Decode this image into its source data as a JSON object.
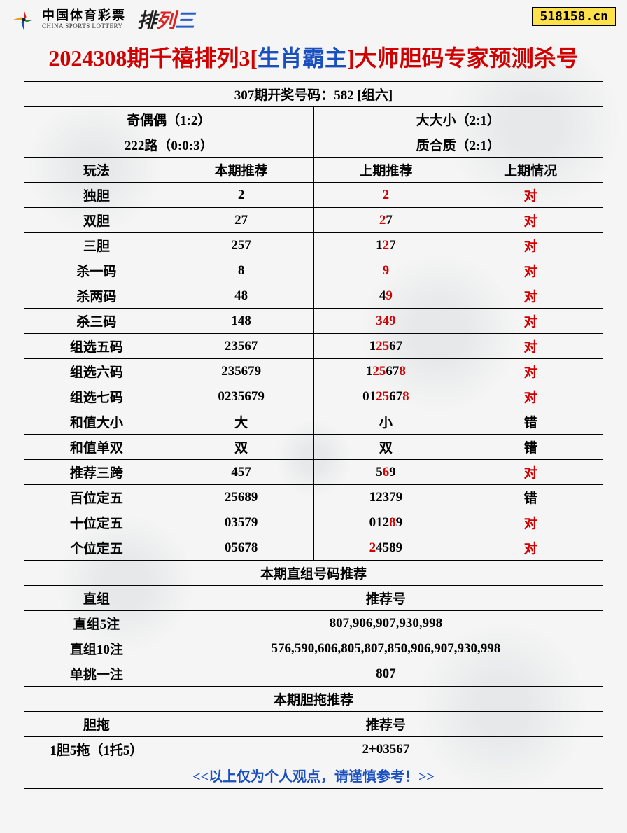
{
  "header": {
    "logo_cn": "中国体育彩票",
    "logo_en": "CHINA SPORTS LOTTERY",
    "pailie_chars": [
      "排",
      "列",
      "三"
    ],
    "pailie_colors": [
      "#222222",
      "#d02020",
      "#2a5cc8"
    ],
    "badge": "518158.cn"
  },
  "title": {
    "part1": "2024308期千禧排列3",
    "bracket_open": "[",
    "part2_blue": "生肖霸主",
    "bracket_close": "]",
    "part3": "大师胆码专家预测杀号"
  },
  "colors": {
    "red": "#d00000",
    "blue": "#1a4fc0",
    "black": "#000000",
    "badge_bg": "#ffe24a",
    "border": "#000000"
  },
  "info_row": "307期开奖号码：582 [组六]",
  "summary": {
    "r1c1": "奇偶偶（1:2）",
    "r1c2": "大大小（2:1）",
    "r2c1": "222路（0:0:3）",
    "r2c2": "质合质（2:1）"
  },
  "columns": [
    "玩法",
    "本期推荐",
    "上期推荐",
    "上期情况"
  ],
  "rows": [
    {
      "name": "独胆",
      "cur": "2",
      "prev": [
        {
          "t": "2",
          "c": "red"
        }
      ],
      "res": "对",
      "res_c": "red"
    },
    {
      "name": "双胆",
      "cur": "27",
      "prev": [
        {
          "t": "2",
          "c": "red"
        },
        {
          "t": "7",
          "c": "black"
        }
      ],
      "res": "对",
      "res_c": "red"
    },
    {
      "name": "三胆",
      "cur": "257",
      "prev": [
        {
          "t": "1",
          "c": "black"
        },
        {
          "t": "2",
          "c": "red"
        },
        {
          "t": "7",
          "c": "black"
        }
      ],
      "res": "对",
      "res_c": "red"
    },
    {
      "name": "杀一码",
      "cur": "8",
      "prev": [
        {
          "t": "9",
          "c": "red"
        }
      ],
      "res": "对",
      "res_c": "red"
    },
    {
      "name": "杀两码",
      "cur": "48",
      "prev": [
        {
          "t": "4",
          "c": "black"
        },
        {
          "t": "9",
          "c": "red"
        }
      ],
      "res": "对",
      "res_c": "red"
    },
    {
      "name": "杀三码",
      "cur": "148",
      "prev": [
        {
          "t": "349",
          "c": "red"
        }
      ],
      "res": "对",
      "res_c": "red"
    },
    {
      "name": "组选五码",
      "cur": "23567",
      "prev": [
        {
          "t": "1",
          "c": "black"
        },
        {
          "t": "25",
          "c": "red"
        },
        {
          "t": "67",
          "c": "black"
        }
      ],
      "res": "对",
      "res_c": "red"
    },
    {
      "name": "组选六码",
      "cur": "235679",
      "prev": [
        {
          "t": "1",
          "c": "black"
        },
        {
          "t": "25",
          "c": "red"
        },
        {
          "t": "67",
          "c": "black"
        },
        {
          "t": "8",
          "c": "red"
        }
      ],
      "res": "对",
      "res_c": "red"
    },
    {
      "name": "组选七码",
      "cur": "0235679",
      "prev": [
        {
          "t": "01",
          "c": "black"
        },
        {
          "t": "25",
          "c": "red"
        },
        {
          "t": "67",
          "c": "black"
        },
        {
          "t": "8",
          "c": "red"
        }
      ],
      "res": "对",
      "res_c": "red"
    },
    {
      "name": "和值大小",
      "cur": "大",
      "prev": [
        {
          "t": "小",
          "c": "black"
        }
      ],
      "res": "错",
      "res_c": "black"
    },
    {
      "name": "和值单双",
      "cur": "双",
      "prev": [
        {
          "t": "双",
          "c": "black"
        }
      ],
      "res": "错",
      "res_c": "black"
    },
    {
      "name": "推荐三跨",
      "cur": "457",
      "prev": [
        {
          "t": "5",
          "c": "black"
        },
        {
          "t": "6",
          "c": "red"
        },
        {
          "t": "9",
          "c": "black"
        }
      ],
      "res": "对",
      "res_c": "red"
    },
    {
      "name": "百位定五",
      "cur": "25689",
      "prev": [
        {
          "t": "12379",
          "c": "black"
        }
      ],
      "res": "错",
      "res_c": "black"
    },
    {
      "name": "十位定五",
      "cur": "03579",
      "prev": [
        {
          "t": "012",
          "c": "black"
        },
        {
          "t": "8",
          "c": "red"
        },
        {
          "t": "9",
          "c": "black"
        }
      ],
      "res": "对",
      "res_c": "red"
    },
    {
      "name": "个位定五",
      "cur": "05678",
      "prev": [
        {
          "t": "2",
          "c": "red"
        },
        {
          "t": "4589",
          "c": "black"
        }
      ],
      "res": "对",
      "res_c": "red"
    }
  ],
  "section2_title": "本期直组号码推荐",
  "section2_header": [
    "直组",
    "推荐号"
  ],
  "section2_rows": [
    {
      "name": "直组5注",
      "val": "807,906,907,930,998"
    },
    {
      "name": "直组10注",
      "val": "576,590,606,805,807,850,906,907,930,998"
    },
    {
      "name": "单挑一注",
      "val": "807"
    }
  ],
  "section3_title": "本期胆拖推荐",
  "section3_header": [
    "胆拖",
    "推荐号"
  ],
  "section3_rows": [
    {
      "name": "1胆5拖（1托5）",
      "val": "2+03567"
    }
  ],
  "footer_note": "<<以上仅为个人观点，请谨慎参考！>>"
}
